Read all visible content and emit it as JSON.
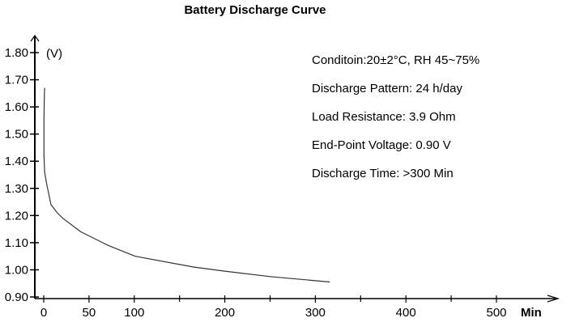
{
  "chart_data": {
    "type": "line",
    "title": "Battery Discharge Curve",
    "xlabel": "Min",
    "ylabel": "(V)",
    "xlim": [
      0,
      560
    ],
    "ylim": [
      0.9,
      1.8
    ],
    "x_ticks": [
      0,
      50,
      100,
      200,
      300,
      400,
      500
    ],
    "x_minor_ticks": [
      150,
      250,
      350,
      450
    ],
    "y_ticks": [
      "0.90",
      "1.00",
      "1.10",
      "1.20",
      "1.30",
      "1.40",
      "1.50",
      "1.60",
      "1.70",
      "1.80"
    ],
    "grid": false,
    "series": [
      {
        "x": [
          1,
          0.5,
          0.3,
          0.3,
          1,
          3,
          8,
          15,
          21,
          41,
          71,
          101,
          166,
          200,
          250,
          316
        ],
        "y": [
          1.67,
          1.62,
          1.55,
          1.42,
          1.36,
          1.32,
          1.24,
          1.21,
          1.19,
          1.14,
          1.09,
          1.05,
          1.01,
          0.995,
          0.975,
          0.955
        ]
      }
    ],
    "annotations": [
      "Conditoin:20±2°C, RH 45~75%",
      "Discharge Pattern: 24 h/day",
      "Load Resistance: 3.9 Ohm",
      "End-Point Voltage: 0.90 V",
      "Discharge Time: >300 Min"
    ],
    "colors": {
      "axis": "#000000",
      "line": "#333333"
    }
  }
}
